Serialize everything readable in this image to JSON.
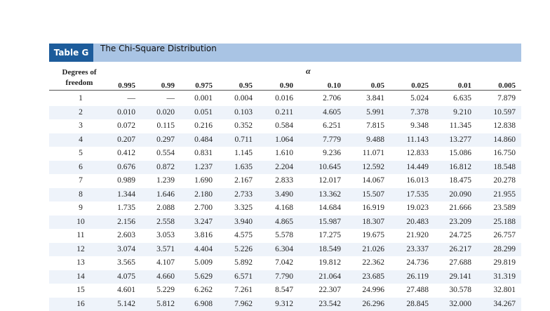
{
  "header": {
    "label": "Table G",
    "title": "The Chi-Square Distribution"
  },
  "table": {
    "row_header": "Degrees of freedom",
    "alpha_symbol": "α",
    "columns": [
      "0.995",
      "0.99",
      "0.975",
      "0.95",
      "0.90",
      "0.10",
      "0.05",
      "0.025",
      "0.01",
      "0.005"
    ],
    "rows": [
      [
        "1",
        "—",
        "—",
        "0.001",
        "0.004",
        "0.016",
        "2.706",
        "3.841",
        "5.024",
        "6.635",
        "7.879"
      ],
      [
        "2",
        "0.010",
        "0.020",
        "0.051",
        "0.103",
        "0.211",
        "4.605",
        "5.991",
        "7.378",
        "9.210",
        "10.597"
      ],
      [
        "3",
        "0.072",
        "0.115",
        "0.216",
        "0.352",
        "0.584",
        "6.251",
        "7.815",
        "9.348",
        "11.345",
        "12.838"
      ],
      [
        "4",
        "0.207",
        "0.297",
        "0.484",
        "0.711",
        "1.064",
        "7.779",
        "9.488",
        "11.143",
        "13.277",
        "14.860"
      ],
      [
        "5",
        "0.412",
        "0.554",
        "0.831",
        "1.145",
        "1.610",
        "9.236",
        "11.071",
        "12.833",
        "15.086",
        "16.750"
      ],
      [
        "6",
        "0.676",
        "0.872",
        "1.237",
        "1.635",
        "2.204",
        "10.645",
        "12.592",
        "14.449",
        "16.812",
        "18.548"
      ],
      [
        "7",
        "0.989",
        "1.239",
        "1.690",
        "2.167",
        "2.833",
        "12.017",
        "14.067",
        "16.013",
        "18.475",
        "20.278"
      ],
      [
        "8",
        "1.344",
        "1.646",
        "2.180",
        "2.733",
        "3.490",
        "13.362",
        "15.507",
        "17.535",
        "20.090",
        "21.955"
      ],
      [
        "9",
        "1.735",
        "2.088",
        "2.700",
        "3.325",
        "4.168",
        "14.684",
        "16.919",
        "19.023",
        "21.666",
        "23.589"
      ],
      [
        "10",
        "2.156",
        "2.558",
        "3.247",
        "3.940",
        "4.865",
        "15.987",
        "18.307",
        "20.483",
        "23.209",
        "25.188"
      ],
      [
        "11",
        "2.603",
        "3.053",
        "3.816",
        "4.575",
        "5.578",
        "17.275",
        "19.675",
        "21.920",
        "24.725",
        "26.757"
      ],
      [
        "12",
        "3.074",
        "3.571",
        "4.404",
        "5.226",
        "6.304",
        "18.549",
        "21.026",
        "23.337",
        "26.217",
        "28.299"
      ],
      [
        "13",
        "3.565",
        "4.107",
        "5.009",
        "5.892",
        "7.042",
        "19.812",
        "22.362",
        "24.736",
        "27.688",
        "29.819"
      ],
      [
        "14",
        "4.075",
        "4.660",
        "5.629",
        "6.571",
        "7.790",
        "21.064",
        "23.685",
        "26.119",
        "29.141",
        "31.319"
      ],
      [
        "15",
        "4.601",
        "5.229",
        "6.262",
        "7.261",
        "8.547",
        "22.307",
        "24.996",
        "27.488",
        "30.578",
        "32.801"
      ],
      [
        "16",
        "5.142",
        "5.812",
        "6.908",
        "7.962",
        "9.312",
        "23.542",
        "26.296",
        "28.845",
        "32.000",
        "34.267"
      ]
    ]
  }
}
